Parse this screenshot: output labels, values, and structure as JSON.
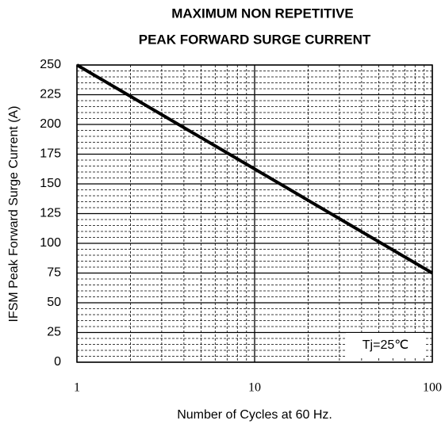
{
  "chart_data": {
    "type": "line",
    "title": [
      "MAXIMUM NON REPETITIVE",
      "PEAK FORWARD SURGE CURRENT"
    ],
    "x_label": "Number  of  Cycles at 60 Hz.",
    "y_label": "IFSM  Peak Forward Surge Current (A)",
    "x_log": true,
    "x": [
      1,
      100
    ],
    "series": [
      {
        "color": "#000000",
        "values": [
          250,
          75
        ]
      }
    ],
    "xlim": [
      1,
      100
    ],
    "ylim": [
      0,
      250
    ],
    "xticks": [
      1,
      10,
      100
    ],
    "yticks": [
      0,
      25,
      50,
      75,
      100,
      125,
      150,
      175,
      200,
      225,
      250
    ],
    "xminorticks": [
      2,
      3,
      4,
      5,
      6,
      7,
      8,
      9,
      20,
      30,
      40,
      50,
      60,
      70,
      80,
      90
    ],
    "yminorticks": [
      5,
      10,
      15,
      20,
      30,
      35,
      40,
      45,
      55,
      60,
      65,
      70,
      80,
      85,
      90,
      95,
      105,
      110,
      115,
      120,
      130,
      135,
      140,
      145,
      155,
      160,
      165,
      170,
      180,
      185,
      190,
      195,
      205,
      210,
      215,
      220,
      230,
      235,
      240,
      245
    ],
    "grid": true,
    "annotation": "Tj=25℃"
  }
}
